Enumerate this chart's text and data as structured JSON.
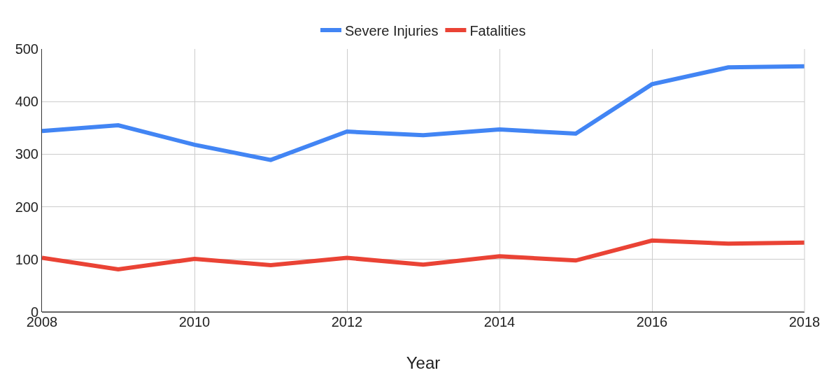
{
  "chart_data": {
    "type": "line",
    "xlabel": "Year",
    "x": [
      2008,
      2009,
      2010,
      2011,
      2012,
      2013,
      2014,
      2015,
      2016,
      2017,
      2018
    ],
    "series": [
      {
        "name": "Severe Injuries",
        "color": "#4285f4",
        "values": [
          344,
          355,
          318,
          289,
          343,
          336,
          347,
          339,
          433,
          465,
          467
        ]
      },
      {
        "name": "Fatalities",
        "color": "#ea4335",
        "values": [
          103,
          81,
          101,
          89,
          103,
          90,
          106,
          98,
          136,
          130,
          132
        ]
      }
    ],
    "xlim": [
      2008,
      2018
    ],
    "xticks": [
      2008,
      2010,
      2012,
      2014,
      2016,
      2018
    ],
    "ylim": [
      0,
      500
    ],
    "yticks": [
      0,
      100,
      200,
      300,
      400,
      500
    ],
    "grid": true,
    "legend": "top",
    "marker": "none",
    "line_style": "solid"
  }
}
